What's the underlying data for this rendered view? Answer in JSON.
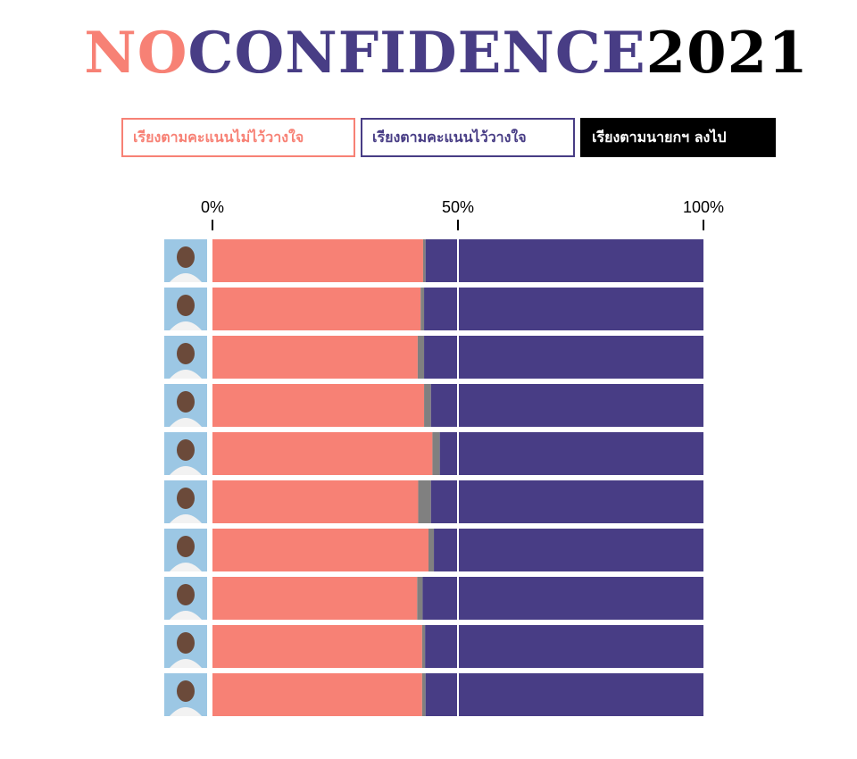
{
  "title": {
    "part1": "NO",
    "part2": "CONFIDENCE",
    "part3": "2021"
  },
  "sort_buttons": [
    {
      "label": "เรียงตามคะแนนไม่ไว้วางใจ"
    },
    {
      "label": "เรียงตามคะแนนไว้วางใจ"
    },
    {
      "label": "เรียงตามนายกฯ ลงไป"
    }
  ],
  "colors": {
    "no_confidence": "#f78175",
    "abstain": "#808080",
    "confidence": "#483d85",
    "photo_bg": "#9cc7e4"
  },
  "chart_data": {
    "type": "bar",
    "orientation": "horizontal",
    "stacked": true,
    "xlim": [
      0,
      100
    ],
    "x_ticks": [
      "0%",
      "50%",
      "100%"
    ],
    "x_tick_values": [
      0,
      50,
      100
    ],
    "legend": "none",
    "row_label_icons": [
      "portrait-photo",
      "portrait-photo",
      "portrait-photo",
      "portrait-photo",
      "portrait-photo",
      "portrait-photo",
      "portrait-photo",
      "portrait-photo",
      "portrait-photo",
      "portrait-photo"
    ],
    "series": [
      {
        "values": [
          42.9,
          42.4,
          41.8,
          43.1,
          44.8,
          41.9,
          44.0,
          41.7,
          42.7,
          42.7
        ]
      },
      {
        "values": [
          0.5,
          0.7,
          1.3,
          1.4,
          1.5,
          2.6,
          1.1,
          1.1,
          0.6,
          0.7
        ]
      },
      {
        "values": [
          56.6,
          56.9,
          56.9,
          55.5,
          53.7,
          55.5,
          54.9,
          57.2,
          56.7,
          56.6
        ]
      }
    ],
    "grid": "vertical line at 50%"
  }
}
